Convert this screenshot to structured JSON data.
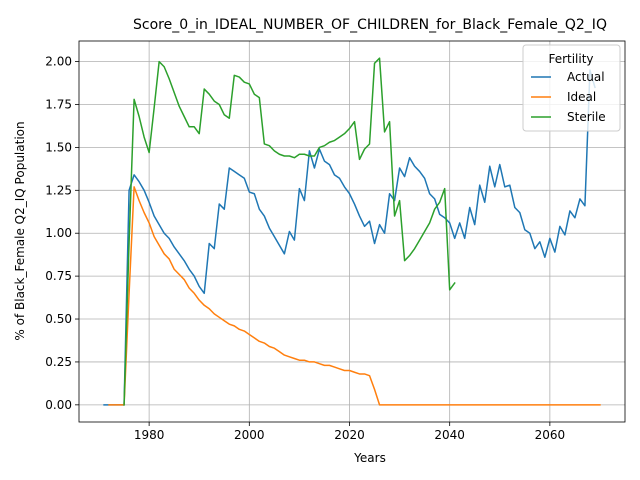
{
  "chart_data": {
    "type": "line",
    "title": "Score_0_in_IDEAL_NUMBER_OF_CHILDREN_for_Black_Female_Q2_IQ",
    "xlabel": "Years",
    "ylabel": "% of Black_Female Q2_IQ Population",
    "xlim": [
      1966,
      2075
    ],
    "ylim": [
      -0.1,
      2.12
    ],
    "xticks": [
      1980,
      2000,
      2020,
      2040,
      2060
    ],
    "yticks": [
      "0.00",
      "0.25",
      "0.50",
      "0.75",
      "1.00",
      "1.25",
      "1.50",
      "1.75",
      "2.00"
    ],
    "grid": true,
    "legend": {
      "title": "Fertility",
      "placement": "upper right"
    },
    "series": [
      {
        "name": "Actual",
        "color": "#1f77b4",
        "points": [
          [
            1971,
            0.0
          ],
          [
            1972,
            0.0
          ],
          [
            1973,
            0.0
          ],
          [
            1974,
            0.0
          ],
          [
            1975,
            0.0
          ],
          [
            1976,
            1.25
          ],
          [
            1977,
            1.34
          ],
          [
            1978,
            1.3
          ],
          [
            1979,
            1.25
          ],
          [
            1980,
            1.18
          ],
          [
            1981,
            1.1
          ],
          [
            1982,
            1.05
          ],
          [
            1983,
            1.0
          ],
          [
            1984,
            0.97
          ],
          [
            1985,
            0.92
          ],
          [
            1986,
            0.88
          ],
          [
            1987,
            0.84
          ],
          [
            1988,
            0.79
          ],
          [
            1989,
            0.75
          ],
          [
            1990,
            0.69
          ],
          [
            1991,
            0.65
          ],
          [
            1992,
            0.94
          ],
          [
            1993,
            0.91
          ],
          [
            1994,
            1.17
          ],
          [
            1995,
            1.14
          ],
          [
            1996,
            1.38
          ],
          [
            1997,
            1.36
          ],
          [
            1998,
            1.34
          ],
          [
            1999,
            1.32
          ],
          [
            2000,
            1.24
          ],
          [
            2001,
            1.23
          ],
          [
            2002,
            1.14
          ],
          [
            2003,
            1.1
          ],
          [
            2004,
            1.03
          ],
          [
            2005,
            0.98
          ],
          [
            2006,
            0.93
          ],
          [
            2007,
            0.88
          ],
          [
            2008,
            1.01
          ],
          [
            2009,
            0.96
          ],
          [
            2010,
            1.26
          ],
          [
            2011,
            1.19
          ],
          [
            2012,
            1.48
          ],
          [
            2013,
            1.38
          ],
          [
            2014,
            1.49
          ],
          [
            2015,
            1.42
          ],
          [
            2016,
            1.4
          ],
          [
            2017,
            1.34
          ],
          [
            2018,
            1.32
          ],
          [
            2019,
            1.27
          ],
          [
            2020,
            1.23
          ],
          [
            2021,
            1.17
          ],
          [
            2022,
            1.1
          ],
          [
            2023,
            1.04
          ],
          [
            2024,
            1.07
          ],
          [
            2025,
            0.94
          ],
          [
            2026,
            1.05
          ],
          [
            2027,
            1.0
          ],
          [
            2028,
            1.23
          ],
          [
            2029,
            1.19
          ],
          [
            2030,
            1.38
          ],
          [
            2031,
            1.33
          ],
          [
            2032,
            1.44
          ],
          [
            2033,
            1.39
          ],
          [
            2034,
            1.36
          ],
          [
            2035,
            1.32
          ],
          [
            2036,
            1.23
          ],
          [
            2037,
            1.2
          ],
          [
            2038,
            1.11
          ],
          [
            2039,
            1.09
          ],
          [
            2040,
            1.06
          ],
          [
            2041,
            0.97
          ],
          [
            2042,
            1.06
          ],
          [
            2043,
            0.97
          ],
          [
            2044,
            1.15
          ],
          [
            2045,
            1.05
          ],
          [
            2046,
            1.28
          ],
          [
            2047,
            1.18
          ],
          [
            2048,
            1.39
          ],
          [
            2049,
            1.27
          ],
          [
            2050,
            1.4
          ],
          [
            2051,
            1.27
          ],
          [
            2052,
            1.28
          ],
          [
            2053,
            1.15
          ],
          [
            2054,
            1.12
          ],
          [
            2055,
            1.02
          ],
          [
            2056,
            1.0
          ],
          [
            2057,
            0.91
          ],
          [
            2058,
            0.95
          ],
          [
            2059,
            0.86
          ],
          [
            2060,
            0.97
          ],
          [
            2061,
            0.89
          ],
          [
            2062,
            1.04
          ],
          [
            2063,
            0.99
          ],
          [
            2064,
            1.13
          ],
          [
            2065,
            1.09
          ],
          [
            2066,
            1.2
          ],
          [
            2067,
            1.16
          ],
          [
            2068,
            1.95
          ],
          [
            2069,
            1.85
          ]
        ]
      },
      {
        "name": "Ideal",
        "color": "#ff7f0e",
        "points": [
          [
            1972,
            0.0
          ],
          [
            1973,
            0.0
          ],
          [
            1974,
            0.0
          ],
          [
            1975,
            0.0
          ],
          [
            1976,
            0.65
          ],
          [
            1977,
            1.27
          ],
          [
            1978,
            1.19
          ],
          [
            1979,
            1.12
          ],
          [
            1980,
            1.06
          ],
          [
            1981,
            0.98
          ],
          [
            1982,
            0.93
          ],
          [
            1983,
            0.88
          ],
          [
            1984,
            0.85
          ],
          [
            1985,
            0.79
          ],
          [
            1986,
            0.76
          ],
          [
            1987,
            0.73
          ],
          [
            1988,
            0.68
          ],
          [
            1989,
            0.65
          ],
          [
            1990,
            0.61
          ],
          [
            1991,
            0.58
          ],
          [
            1992,
            0.56
          ],
          [
            1993,
            0.53
          ],
          [
            1994,
            0.51
          ],
          [
            1995,
            0.49
          ],
          [
            1996,
            0.47
          ],
          [
            1997,
            0.46
          ],
          [
            1998,
            0.44
          ],
          [
            1999,
            0.43
          ],
          [
            2000,
            0.41
          ],
          [
            2001,
            0.39
          ],
          [
            2002,
            0.37
          ],
          [
            2003,
            0.36
          ],
          [
            2004,
            0.34
          ],
          [
            2005,
            0.33
          ],
          [
            2006,
            0.31
          ],
          [
            2007,
            0.29
          ],
          [
            2008,
            0.28
          ],
          [
            2009,
            0.27
          ],
          [
            2010,
            0.26
          ],
          [
            2011,
            0.26
          ],
          [
            2012,
            0.25
          ],
          [
            2013,
            0.25
          ],
          [
            2014,
            0.24
          ],
          [
            2015,
            0.23
          ],
          [
            2016,
            0.23
          ],
          [
            2017,
            0.22
          ],
          [
            2018,
            0.21
          ],
          [
            2019,
            0.2
          ],
          [
            2020,
            0.2
          ],
          [
            2021,
            0.19
          ],
          [
            2022,
            0.18
          ],
          [
            2023,
            0.18
          ],
          [
            2024,
            0.17
          ],
          [
            2025,
            0.09
          ],
          [
            2026,
            0.0
          ],
          [
            2030,
            0.0
          ],
          [
            2040,
            0.0
          ],
          [
            2050,
            0.0
          ],
          [
            2060,
            0.0
          ],
          [
            2070,
            0.0
          ]
        ]
      },
      {
        "name": "Sterile",
        "color": "#2ca02c",
        "points": [
          [
            1975,
            0.0
          ],
          [
            1976,
            0.95
          ],
          [
            1977,
            1.78
          ],
          [
            1978,
            1.68
          ],
          [
            1979,
            1.56
          ],
          [
            1980,
            1.47
          ],
          [
            1981,
            1.73
          ],
          [
            1982,
            2.0
          ],
          [
            1983,
            1.97
          ],
          [
            1984,
            1.9
          ],
          [
            1985,
            1.82
          ],
          [
            1986,
            1.74
          ],
          [
            1987,
            1.68
          ],
          [
            1988,
            1.62
          ],
          [
            1989,
            1.62
          ],
          [
            1990,
            1.58
          ],
          [
            1991,
            1.84
          ],
          [
            1992,
            1.81
          ],
          [
            1993,
            1.77
          ],
          [
            1994,
            1.75
          ],
          [
            1995,
            1.69
          ],
          [
            1996,
            1.67
          ],
          [
            1997,
            1.92
          ],
          [
            1998,
            1.91
          ],
          [
            1999,
            1.88
          ],
          [
            2000,
            1.87
          ],
          [
            2001,
            1.81
          ],
          [
            2002,
            1.79
          ],
          [
            2003,
            1.52
          ],
          [
            2004,
            1.51
          ],
          [
            2005,
            1.48
          ],
          [
            2006,
            1.46
          ],
          [
            2007,
            1.45
          ],
          [
            2008,
            1.45
          ],
          [
            2009,
            1.44
          ],
          [
            2010,
            1.46
          ],
          [
            2011,
            1.46
          ],
          [
            2012,
            1.45
          ],
          [
            2013,
            1.45
          ],
          [
            2014,
            1.5
          ],
          [
            2015,
            1.51
          ],
          [
            2016,
            1.53
          ],
          [
            2017,
            1.54
          ],
          [
            2018,
            1.56
          ],
          [
            2019,
            1.58
          ],
          [
            2020,
            1.61
          ],
          [
            2021,
            1.65
          ],
          [
            2022,
            1.43
          ],
          [
            2023,
            1.49
          ],
          [
            2024,
            1.52
          ],
          [
            2025,
            1.99
          ],
          [
            2026,
            2.02
          ],
          [
            2027,
            1.59
          ],
          [
            2028,
            1.65
          ],
          [
            2029,
            1.1
          ],
          [
            2030,
            1.19
          ],
          [
            2031,
            0.84
          ],
          [
            2032,
            0.87
          ],
          [
            2033,
            0.91
          ],
          [
            2034,
            0.96
          ],
          [
            2035,
            1.01
          ],
          [
            2036,
            1.06
          ],
          [
            2037,
            1.14
          ],
          [
            2038,
            1.18
          ],
          [
            2039,
            1.26
          ],
          [
            2040,
            0.67
          ],
          [
            2041,
            0.71
          ]
        ]
      }
    ]
  }
}
